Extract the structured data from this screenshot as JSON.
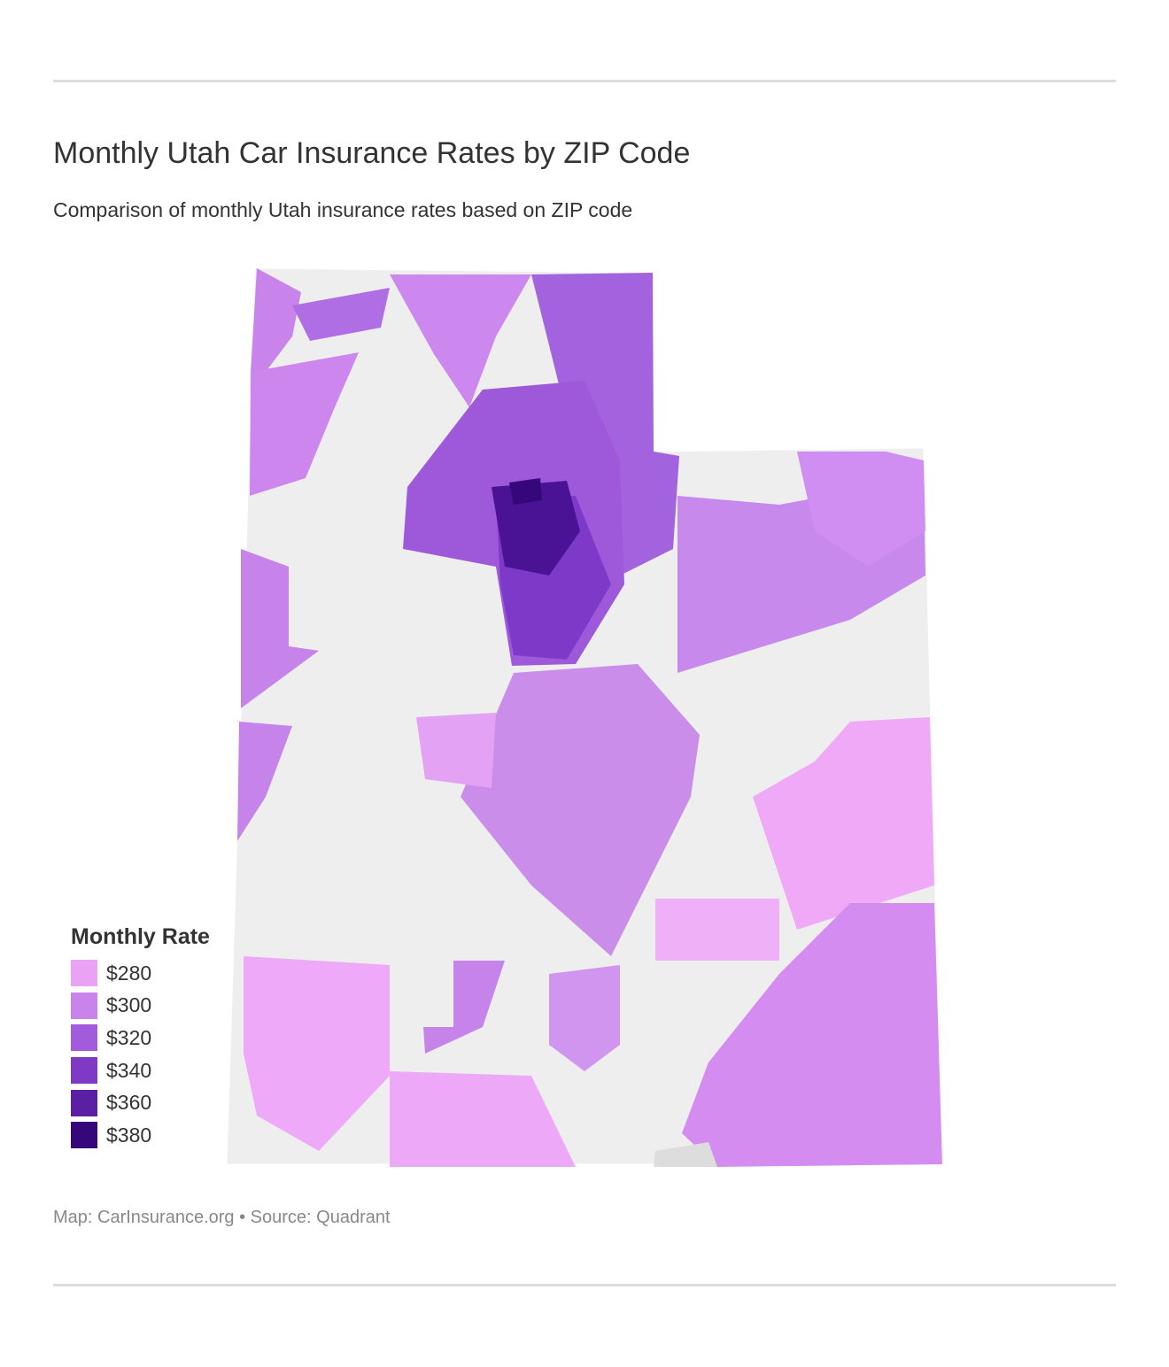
{
  "header": {
    "title": "Monthly Utah Car Insurance Rates by ZIP Code",
    "subtitle": "Comparison of monthly Utah insurance rates based on ZIP code"
  },
  "legend": {
    "title": "Monthly Rate",
    "items": [
      {
        "label": "$280",
        "color": "#eaa2f5"
      },
      {
        "label": "$300",
        "color": "#c884ea"
      },
      {
        "label": "$320",
        "color": "#a25bdb"
      },
      {
        "label": "$340",
        "color": "#7e39c5"
      },
      {
        "label": "$360",
        "color": "#5a1fa3"
      },
      {
        "label": "$380",
        "color": "#35077a"
      }
    ]
  },
  "footer": {
    "source": "Map: CarInsurance.org • Source: Quadrant"
  }
}
